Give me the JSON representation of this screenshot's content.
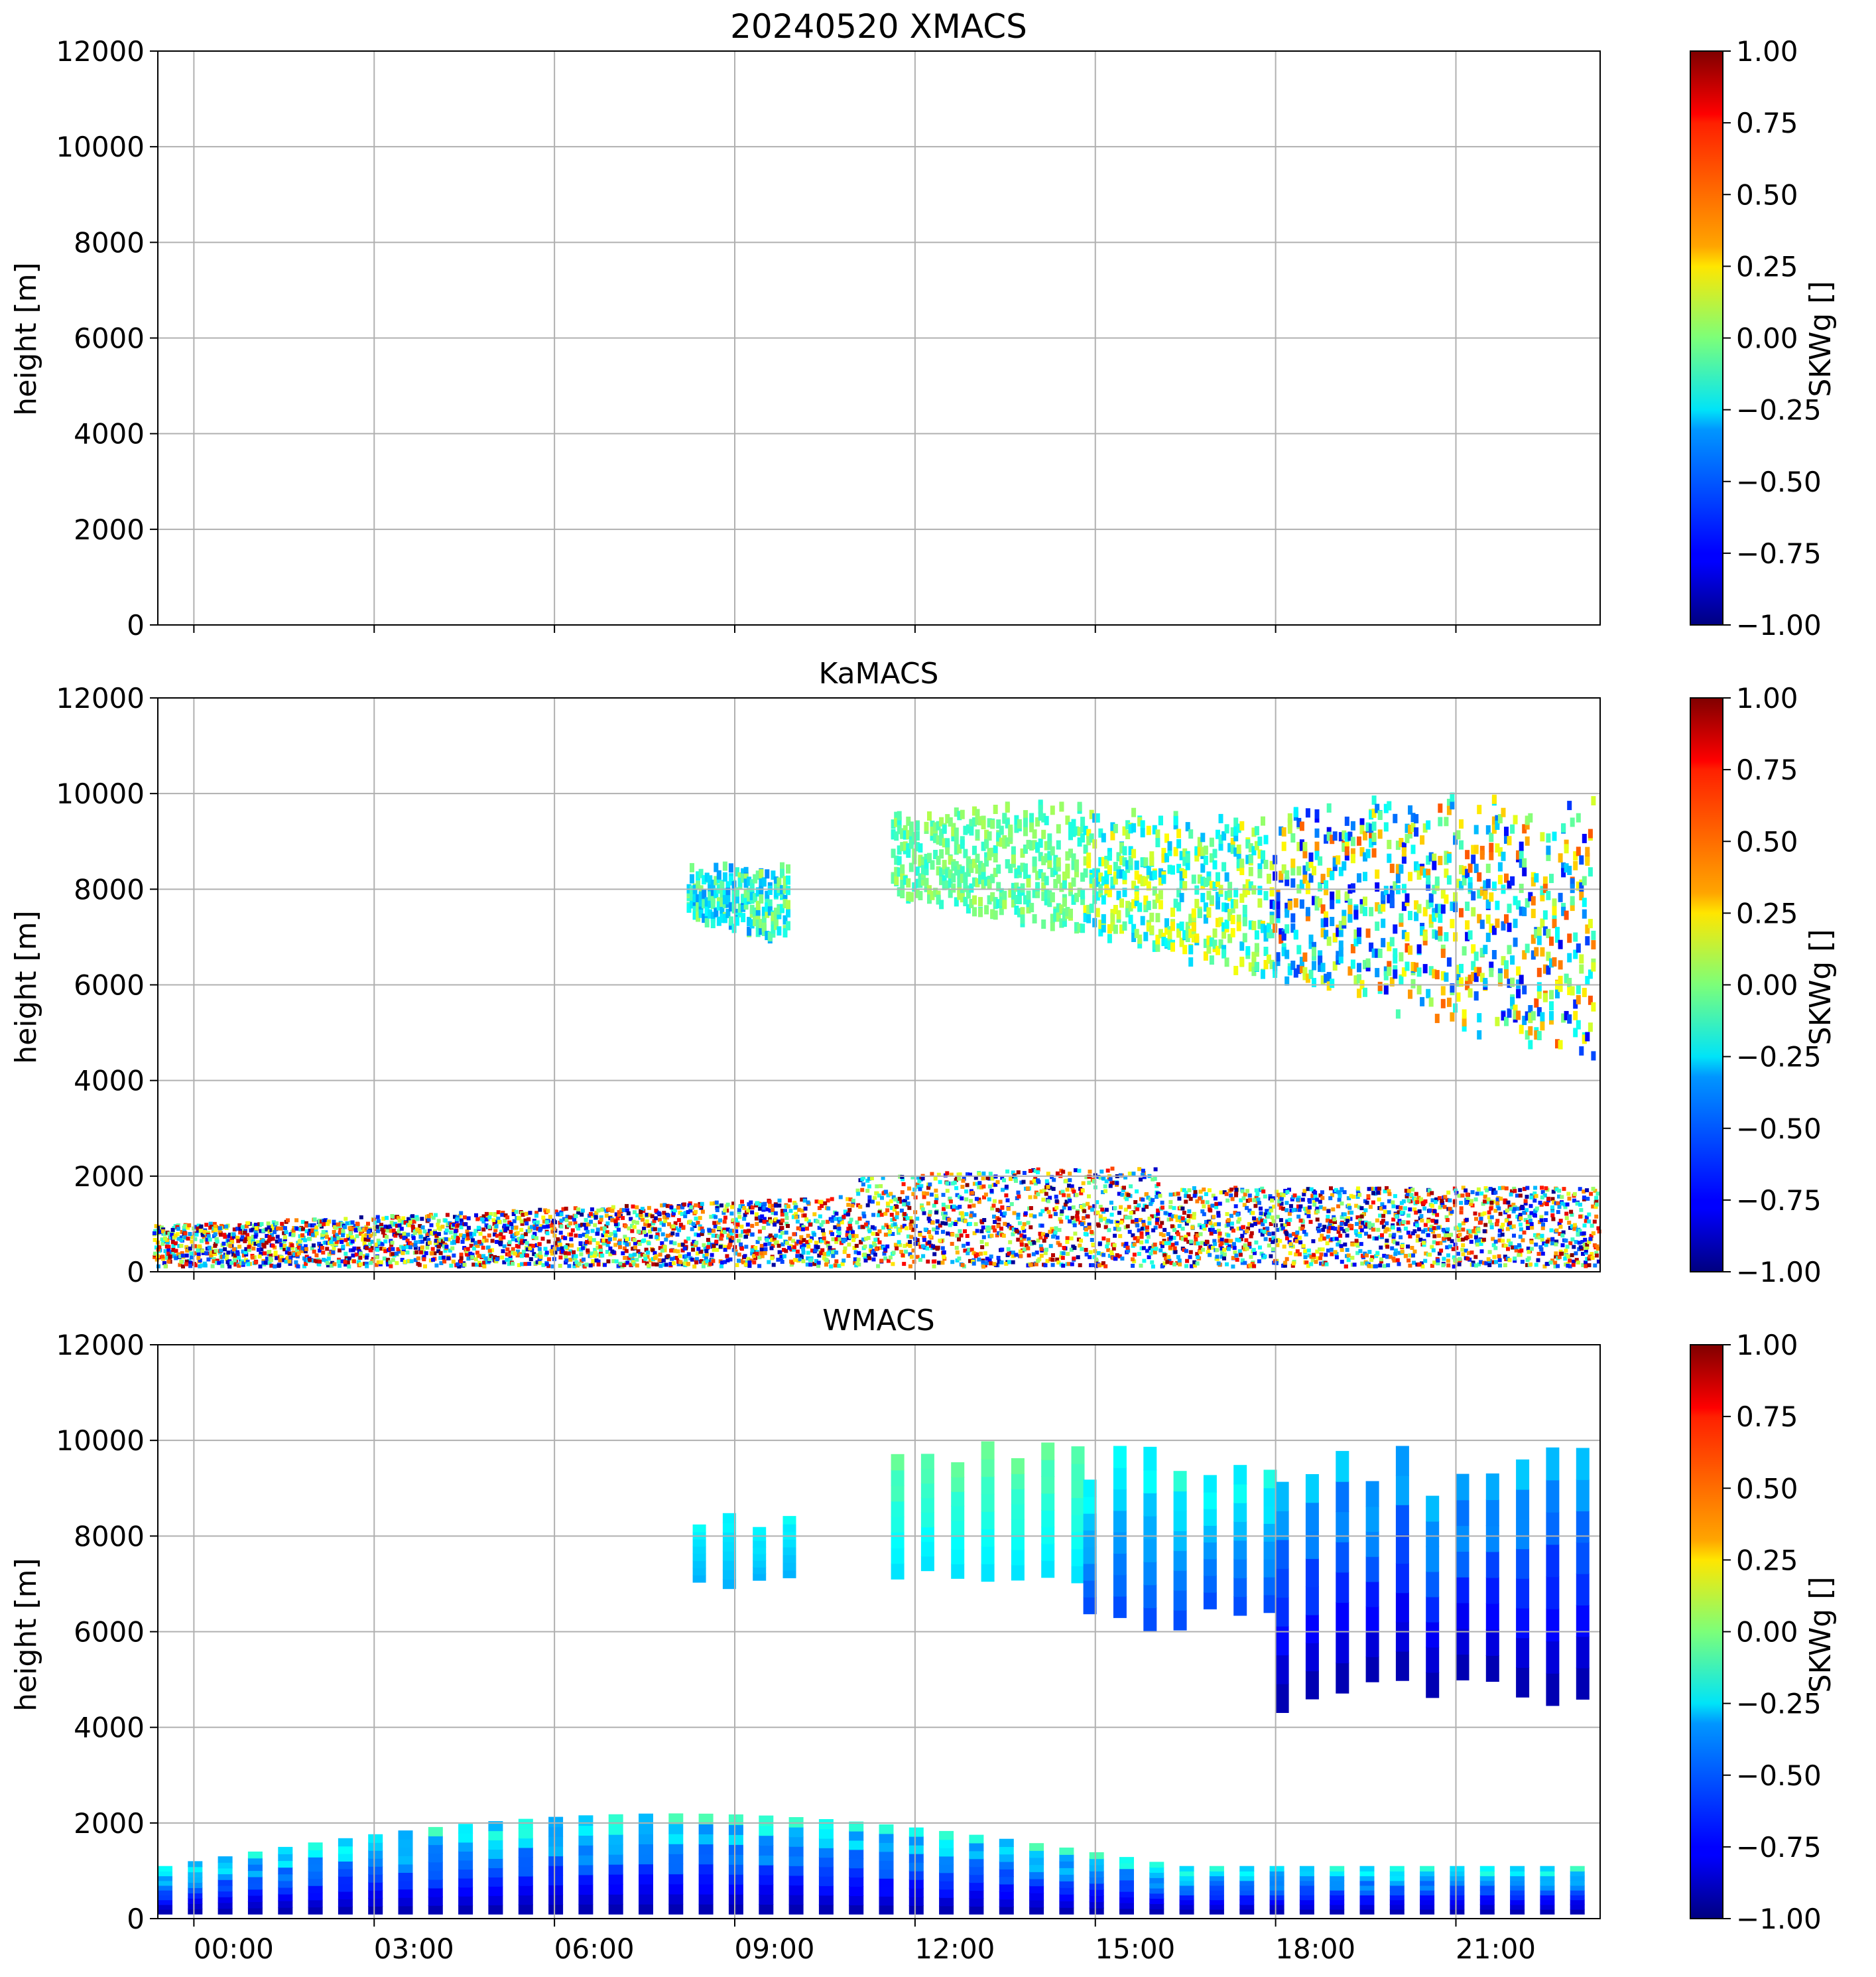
{
  "chart_data": [
    {
      "type": "heatmap",
      "title": "20240520 XMACS",
      "xlabel": "",
      "ylabel": "height [m]",
      "xlim": [
        "23:00",
        "23:00+24h"
      ],
      "ylim": [
        0,
        12000
      ],
      "x_tick_labels": [],
      "y_ticks": [
        0,
        2000,
        4000,
        6000,
        8000,
        10000,
        12000
      ],
      "grid": true,
      "colorbar": {
        "label": "SKWg []",
        "colormap": "jet",
        "range": [
          -1.0,
          1.0
        ],
        "tick_labels": [
          "1.00",
          "0.75",
          "0.50",
          "0.25",
          "0.00",
          "−0.25",
          "−0.50",
          "−0.75",
          "−1.00"
        ]
      },
      "features": []
    },
    {
      "type": "heatmap",
      "title": "KaMACS",
      "xlabel": "",
      "ylabel": "height [m]",
      "ylim": [
        0,
        12000
      ],
      "x_tick_labels": [],
      "y_ticks": [
        0,
        2000,
        4000,
        6000,
        8000,
        10000,
        12000
      ],
      "grid": true,
      "colorbar": {
        "label": "SKWg []",
        "colormap": "jet",
        "range": [
          -1.0,
          1.0
        ],
        "tick_labels": [
          "1.00",
          "0.75",
          "0.50",
          "0.25",
          "0.00",
          "−0.25",
          "−0.50",
          "−0.75",
          "−1.00"
        ]
      },
      "features": [
        {
          "kind": "noise",
          "t": [
            -0.7,
            23.3
          ],
          "h_top_start": 1000,
          "h_top_end": 1800,
          "skw": [
            -1,
            1
          ]
        },
        {
          "kind": "cloud",
          "t": [
            8.2,
            9.9
          ],
          "h": [
            6900,
            8600
          ],
          "skw": [
            -0.5,
            0.1
          ]
        },
        {
          "kind": "cloud",
          "t": [
            11.6,
            14.8
          ],
          "h": [
            7000,
            9900
          ],
          "skw": [
            -0.2,
            0.1
          ]
        },
        {
          "kind": "cloud",
          "t": [
            14.8,
            17.9
          ],
          "h": [
            6000,
            9800
          ],
          "skw": [
            -0.4,
            0.3
          ]
        },
        {
          "kind": "cloud",
          "t": [
            17.9,
            23.3
          ],
          "h": [
            4400,
            10100
          ],
          "skw": [
            -0.8,
            0.6
          ]
        }
      ]
    },
    {
      "type": "heatmap",
      "title": "WMACS",
      "xlabel": "",
      "ylabel": "height [m]",
      "ylim": [
        0,
        12000
      ],
      "x_tick_labels": [
        "00:00",
        "03:00",
        "06:00",
        "09:00",
        "12:00",
        "15:00",
        "18:00",
        "21:00"
      ],
      "y_ticks": [
        0,
        2000,
        4000,
        6000,
        8000,
        10000,
        12000
      ],
      "grid": true,
      "colorbar": {
        "label": "SKWg []",
        "colormap": "jet",
        "range": [
          -1.0,
          1.0
        ],
        "tick_labels": [
          "1.00",
          "0.75",
          "0.50",
          "0.25",
          "0.00",
          "−0.25",
          "−0.50",
          "−0.75",
          "−1.00"
        ]
      },
      "features": [
        {
          "kind": "low-stripes",
          "t": [
            -0.6,
            23.1
          ],
          "period_h": 0.5,
          "h_top_start": 1100,
          "h_top_peak": 2200,
          "skw": [
            -0.9,
            0.0
          ]
        },
        {
          "kind": "high-stripes",
          "t": [
            8.3,
            10.0
          ],
          "h": [
            6900,
            8500
          ],
          "skw": [
            -0.4,
            -0.2
          ]
        },
        {
          "kind": "high-stripes",
          "t": [
            11.6,
            14.8
          ],
          "h": [
            7000,
            10000
          ],
          "skw": [
            -0.3,
            0.0
          ]
        },
        {
          "kind": "high-stripes",
          "t": [
            14.8,
            18.0
          ],
          "h": [
            5900,
            9900
          ],
          "skw": [
            -0.6,
            -0.1
          ]
        },
        {
          "kind": "high-stripes",
          "t": [
            18.0,
            23.3
          ],
          "h": [
            4300,
            9900
          ],
          "skw": [
            -0.9,
            -0.2
          ]
        }
      ]
    }
  ]
}
